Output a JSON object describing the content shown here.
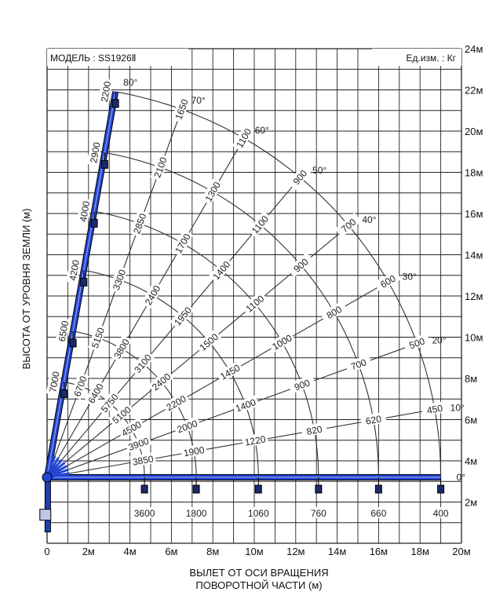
{
  "chart_data": {
    "type": "line",
    "title": "МОДЕЛЬ : SS1926Ⅱ",
    "units_note": "Ед.изм. : Кг",
    "xlabel_line1": "ВЫЛЕТ ОТ ОСИ ВРАЩЕНИЯ",
    "xlabel_line2": "ПОВОРОТНОЙ ЧАСТИ (м)",
    "ylabel": "ВЫСОТА ОТ УРОВНЯ ЗЕМЛИ (м)",
    "xlim": [
      0,
      20
    ],
    "ylim": [
      0,
      24
    ],
    "grid": true,
    "x_ticks": [
      "0",
      "2м",
      "4м",
      "6м",
      "8м",
      "10м",
      "12м",
      "14м",
      "16м",
      "18м",
      "20м"
    ],
    "y_ticks": [
      "2м",
      "4м",
      "6м",
      "8м",
      "10м",
      "12м",
      "14м",
      "16м",
      "18м",
      "20м",
      "22м",
      "24м"
    ],
    "pivot": [
      0,
      3.2
    ],
    "boom_lengths_m": [
      4.7,
      7.2,
      10.2,
      13.1,
      16.0,
      19.0
    ],
    "boom_angles_deg": [
      0,
      10,
      20,
      30,
      40,
      50,
      60,
      70,
      80
    ],
    "angle_labels": [
      "0°",
      "10°",
      "20°",
      "30°",
      "40°",
      "50°",
      "60°",
      "70°",
      "80°"
    ],
    "series": [
      {
        "name": "0°",
        "values": [
          "3600",
          "1800",
          "1060",
          "760",
          "660",
          "400"
        ]
      },
      {
        "name": "10°",
        "values": [
          "3850",
          "1900",
          "1220",
          "820",
          "620",
          "450"
        ]
      },
      {
        "name": "20°",
        "values": [
          "3900",
          "2000",
          "1400",
          "900",
          "700",
          "500"
        ]
      },
      {
        "name": "30°",
        "values": [
          "4500",
          "2200",
          "1450",
          "1000",
          "800",
          "600"
        ]
      },
      {
        "name": "40°",
        "values": [
          "5100",
          "2400",
          "1500",
          "1100",
          "900",
          "700"
        ]
      },
      {
        "name": "50°",
        "values": [
          "5750",
          "3100",
          "1950",
          "1400",
          "1100",
          "900"
        ]
      },
      {
        "name": "60°",
        "values": [
          "6400",
          "3800",
          "2400",
          "1700",
          "1300",
          "1100"
        ]
      },
      {
        "name": "70°",
        "values": [
          "6700",
          "5150",
          "3300",
          "2850",
          "2100",
          "1650"
        ]
      },
      {
        "name": "80°",
        "values": [
          "7000",
          "6500",
          "4200",
          "4000",
          "2900",
          "2200"
        ]
      }
    ]
  }
}
